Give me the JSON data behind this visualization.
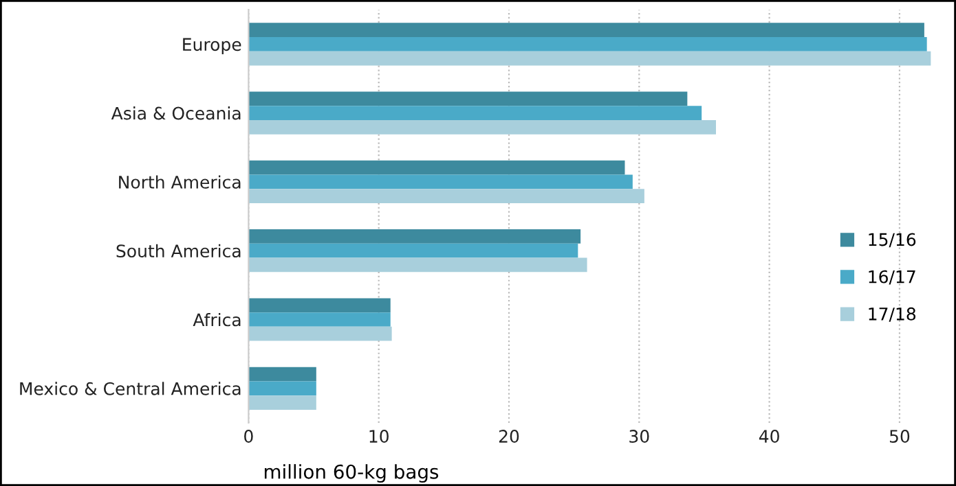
{
  "chart_data": {
    "type": "bar",
    "orientation": "horizontal",
    "xlabel": "million 60-kg bags",
    "categories": [
      "Europe",
      "Asia & Oceania",
      "North America",
      "South America",
      "Africa",
      "Mexico & Central America"
    ],
    "series": [
      {
        "name": "15/16",
        "color": "#3d8a9e",
        "values": [
          51.9,
          33.7,
          28.9,
          25.5,
          10.9,
          5.2
        ]
      },
      {
        "name": "16/17",
        "color": "#4aaac8",
        "values": [
          52.1,
          34.8,
          29.5,
          25.3,
          10.9,
          5.2
        ]
      },
      {
        "name": "17/18",
        "color": "#a8cfdc",
        "values": [
          52.4,
          35.9,
          30.4,
          26.0,
          11.0,
          5.2
        ]
      }
    ],
    "xlim": [
      0,
      52.5
    ],
    "xticks": [
      0,
      10,
      20,
      30,
      40,
      50
    ],
    "grid": "x",
    "legend": "right"
  }
}
